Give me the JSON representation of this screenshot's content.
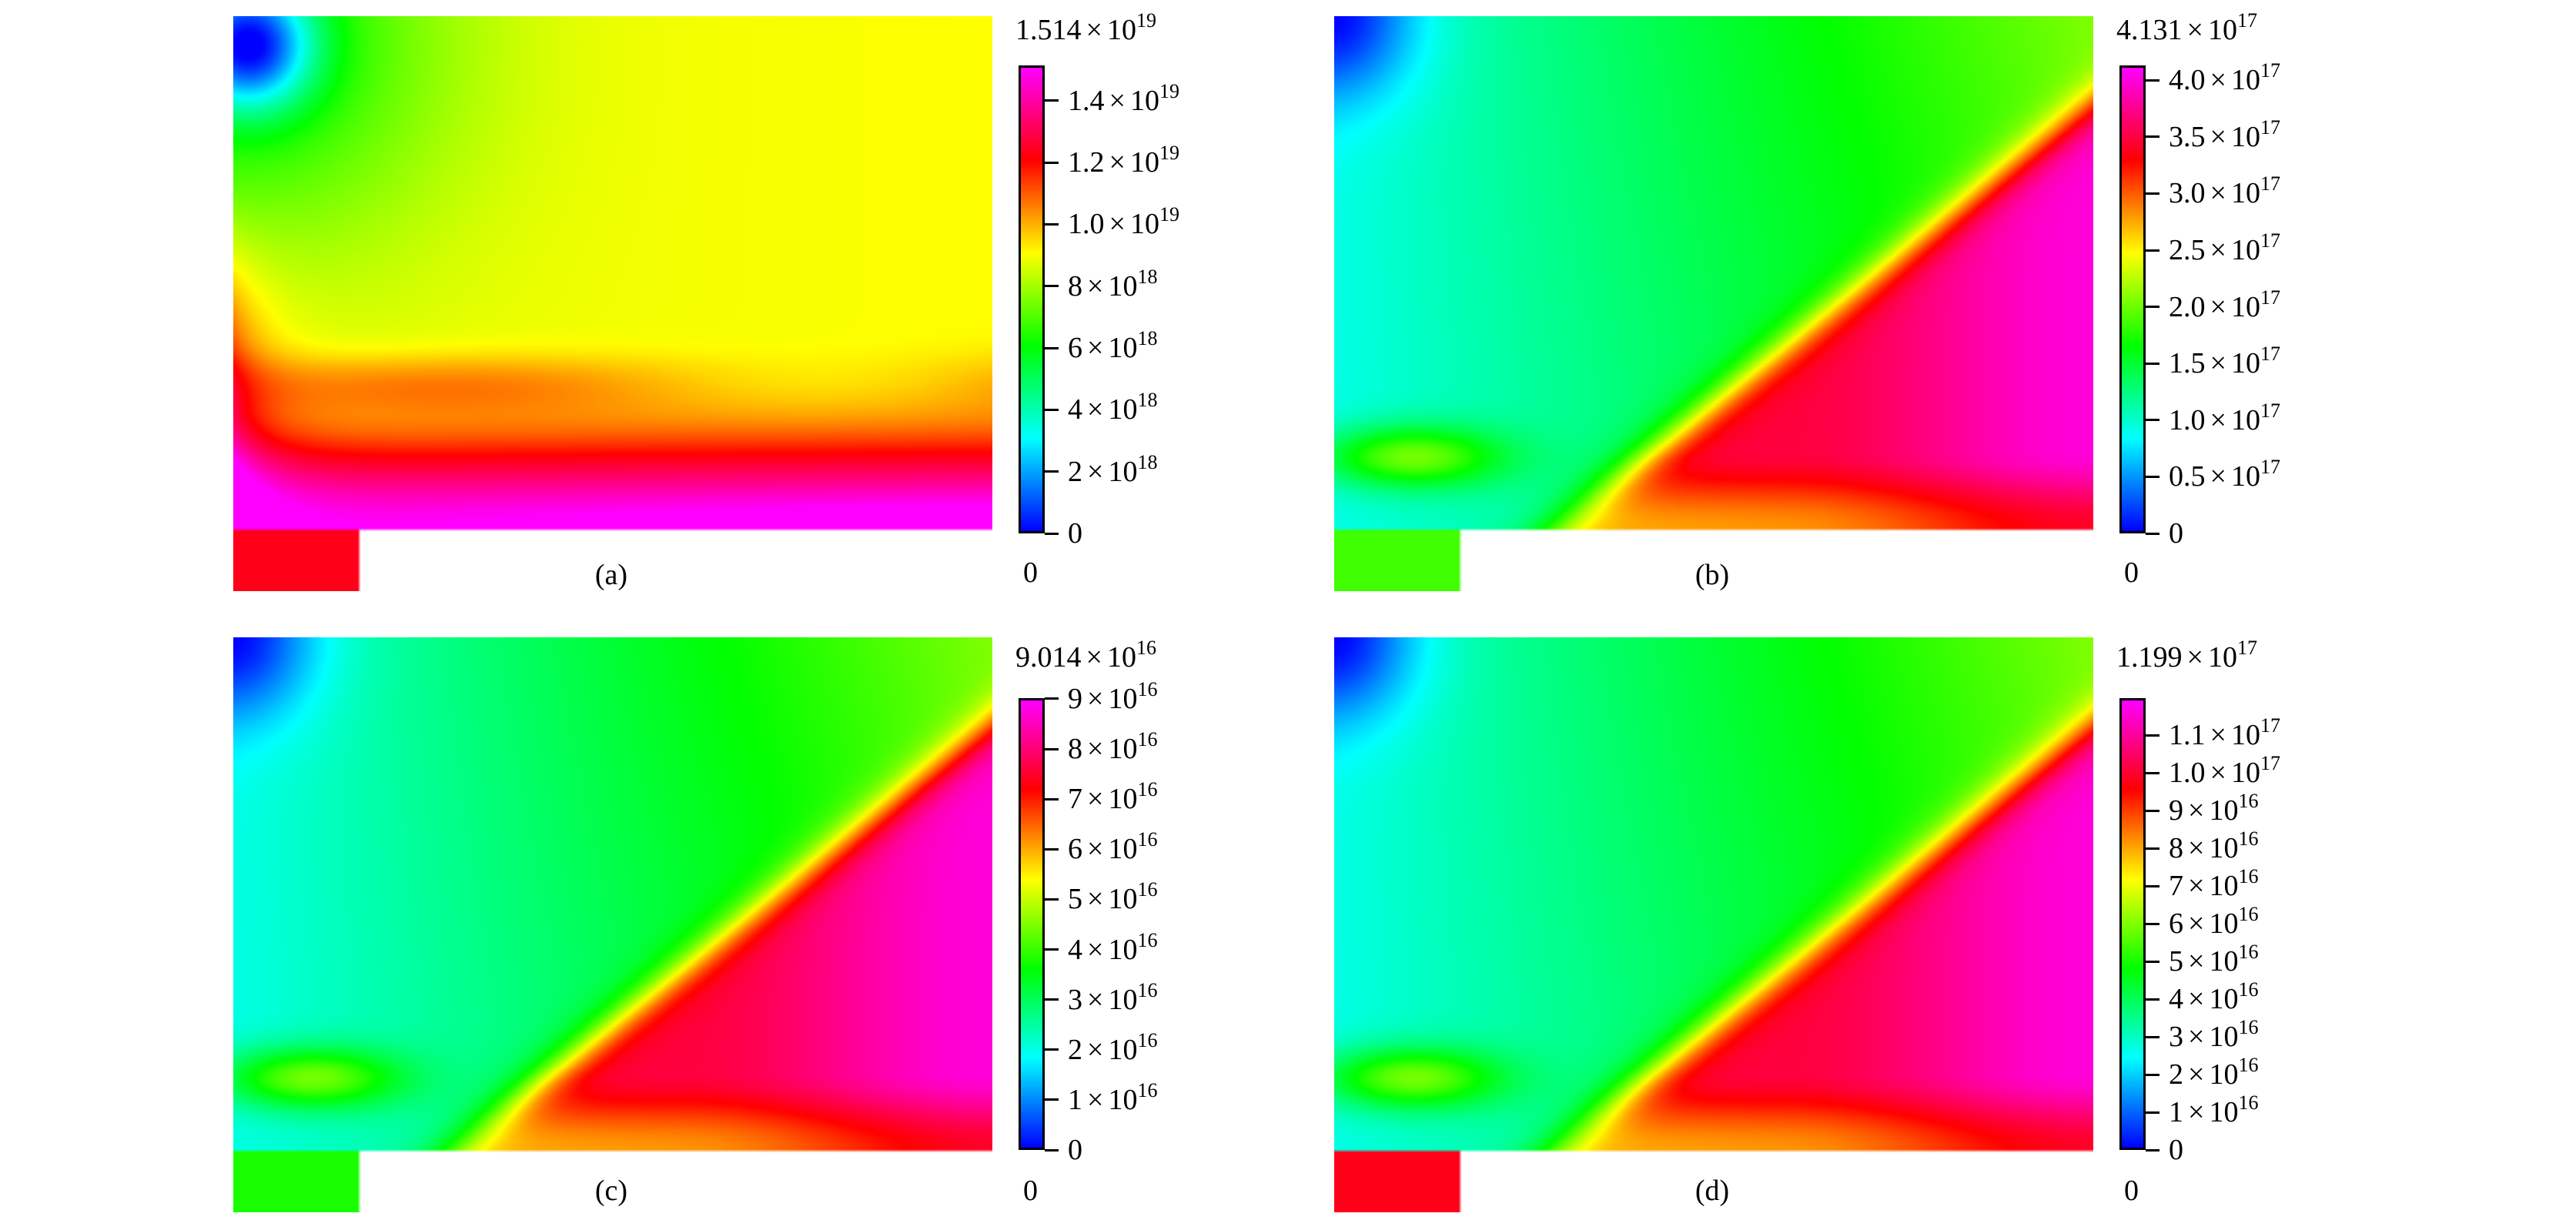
{
  "chart_data": [
    {
      "type": "heatmap",
      "panel_label": "(a)",
      "colormap": [
        "#0000ff",
        "#00ffff",
        "#00ff00",
        "#ffff00",
        "#ff0000",
        "#ff00ff"
      ],
      "colorbar": {
        "min": 0,
        "max": 1.514e+19,
        "max_label": {
          "mantissa": "1.514",
          "exp": "19"
        },
        "min_label": "0",
        "ticks": [
          {
            "value": 0,
            "mantissa": "0",
            "exp": ""
          },
          {
            "value": 2e+18,
            "mantissa": "2",
            "exp": "18"
          },
          {
            "value": 4e+18,
            "mantissa": "4",
            "exp": "18"
          },
          {
            "value": 6e+18,
            "mantissa": "6",
            "exp": "18"
          },
          {
            "value": 8e+18,
            "mantissa": "8",
            "exp": "18"
          },
          {
            "value": 1e+19,
            "mantissa": "1.0",
            "exp": "19"
          },
          {
            "value": 1.2e+19,
            "mantissa": "1.2",
            "exp": "19"
          },
          {
            "value": 1.4e+19,
            "mantissa": "1.4",
            "exp": "19"
          }
        ]
      }
    },
    {
      "type": "heatmap",
      "panel_label": "(b)",
      "colormap": [
        "#0000ff",
        "#00ffff",
        "#00ff00",
        "#ffff00",
        "#ff0000",
        "#ff00ff"
      ],
      "colorbar": {
        "min": 0,
        "max": 4.131e+17,
        "max_label": {
          "mantissa": "4.131",
          "exp": "17"
        },
        "min_label": "0",
        "ticks": [
          {
            "value": 0,
            "mantissa": "0",
            "exp": ""
          },
          {
            "value": 5e+16,
            "mantissa": "0.5",
            "exp": "17"
          },
          {
            "value": 1e+17,
            "mantissa": "1.0",
            "exp": "17"
          },
          {
            "value": 1.5e+17,
            "mantissa": "1.5",
            "exp": "17"
          },
          {
            "value": 2e+17,
            "mantissa": "2.0",
            "exp": "17"
          },
          {
            "value": 2.5e+17,
            "mantissa": "2.5",
            "exp": "17"
          },
          {
            "value": 3e+17,
            "mantissa": "3.0",
            "exp": "17"
          },
          {
            "value": 3.5e+17,
            "mantissa": "3.5",
            "exp": "17"
          },
          {
            "value": 4e+17,
            "mantissa": "4.0",
            "exp": "17"
          }
        ]
      }
    },
    {
      "type": "heatmap",
      "panel_label": "(c)",
      "colormap": [
        "#0000ff",
        "#00ffff",
        "#00ff00",
        "#ffff00",
        "#ff0000",
        "#ff00ff"
      ],
      "colorbar": {
        "min": 0,
        "max": 9.014e+16,
        "max_label": {
          "mantissa": "9.014",
          "exp": "16"
        },
        "min_label": "0",
        "ticks": [
          {
            "value": 0,
            "mantissa": "0",
            "exp": ""
          },
          {
            "value": 1e+16,
            "mantissa": "1",
            "exp": "16"
          },
          {
            "value": 2e+16,
            "mantissa": "2",
            "exp": "16"
          },
          {
            "value": 3e+16,
            "mantissa": "3",
            "exp": "16"
          },
          {
            "value": 4e+16,
            "mantissa": "4",
            "exp": "16"
          },
          {
            "value": 5e+16,
            "mantissa": "5",
            "exp": "16"
          },
          {
            "value": 6e+16,
            "mantissa": "6",
            "exp": "16"
          },
          {
            "value": 7e+16,
            "mantissa": "7",
            "exp": "16"
          },
          {
            "value": 8e+16,
            "mantissa": "8",
            "exp": "16"
          },
          {
            "value": 9e+16,
            "mantissa": "9",
            "exp": "16"
          }
        ]
      }
    },
    {
      "type": "heatmap",
      "panel_label": "(d)",
      "colormap": [
        "#0000ff",
        "#00ffff",
        "#00ff00",
        "#ffff00",
        "#ff0000",
        "#ff00ff"
      ],
      "colorbar": {
        "min": 0,
        "max": 1.199e+17,
        "max_label": {
          "mantissa": "1.199",
          "exp": "17"
        },
        "min_label": "0",
        "ticks": [
          {
            "value": 0,
            "mantissa": "0",
            "exp": ""
          },
          {
            "value": 1e+16,
            "mantissa": "1",
            "exp": "16"
          },
          {
            "value": 2e+16,
            "mantissa": "2",
            "exp": "16"
          },
          {
            "value": 3e+16,
            "mantissa": "3",
            "exp": "16"
          },
          {
            "value": 4e+16,
            "mantissa": "4",
            "exp": "16"
          },
          {
            "value": 5e+16,
            "mantissa": "5",
            "exp": "16"
          },
          {
            "value": 6e+16,
            "mantissa": "6",
            "exp": "16"
          },
          {
            "value": 7e+16,
            "mantissa": "7",
            "exp": "16"
          },
          {
            "value": 8e+16,
            "mantissa": "8",
            "exp": "16"
          },
          {
            "value": 9e+16,
            "mantissa": "9",
            "exp": "16"
          },
          {
            "value": 1e+17,
            "mantissa": "1.0",
            "exp": "17"
          },
          {
            "value": 1.1e+17,
            "mantissa": "1.1",
            "exp": "17"
          }
        ]
      }
    }
  ]
}
